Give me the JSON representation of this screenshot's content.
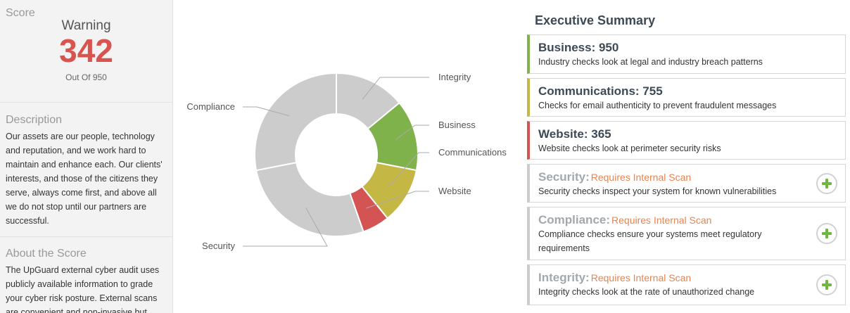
{
  "sidebar": {
    "score": {
      "heading": "Score",
      "status": "Warning",
      "value": "342",
      "out_of": "Out Of 950"
    },
    "description": {
      "heading": "Description",
      "text": "Our assets are our people, technology and reputation, and we work hard to maintain and enhance each. Our clients' interests, and those of the citizens they serve, always come first, and above all we do not stop until our partners are successful."
    },
    "about": {
      "heading": "About the Score",
      "text": "The UpGuard external cyber audit uses publicly available information to grade your cyber risk posture. External scans are convenient and non-invasive but"
    }
  },
  "chart_data": {
    "type": "pie",
    "variant": "donut",
    "categories": [
      "Integrity",
      "Business",
      "Communications",
      "Website",
      "Security",
      "Compliance"
    ],
    "values": [
      950,
      950,
      755,
      365,
      1850,
      1900
    ],
    "colors": [
      "#cccccc",
      "#7fb24b",
      "#c5b744",
      "#d45454",
      "#cccccc",
      "#cccccc"
    ]
  },
  "summary": {
    "title": "Executive Summary",
    "cards": [
      {
        "title": "Business: 950",
        "requirement": "",
        "desc": "Industry checks look at legal and industry breach patterns",
        "accent": "#7fb24b"
      },
      {
        "title": "Communications: 755",
        "requirement": "",
        "desc": "Checks for email authenticity to prevent fraudulent messages",
        "accent": "#c5b744"
      },
      {
        "title": "Website: 365",
        "requirement": "",
        "desc": "Website checks look at perimeter security risks",
        "accent": "#d45454"
      },
      {
        "title": "Security:",
        "requirement": "Requires Internal Scan",
        "desc": "Security checks inspect your system for known vulnerabilities",
        "accent": "#cccccc"
      },
      {
        "title": "Compliance:",
        "requirement": "Requires Internal Scan",
        "desc": "Compliance checks ensure your systems meet regulatory requirements",
        "accent": "#cccccc"
      },
      {
        "title": "Integrity:",
        "requirement": "Requires Internal Scan",
        "desc": "Integrity checks look at the rate of unauthorized change",
        "accent": "#cccccc"
      }
    ]
  }
}
